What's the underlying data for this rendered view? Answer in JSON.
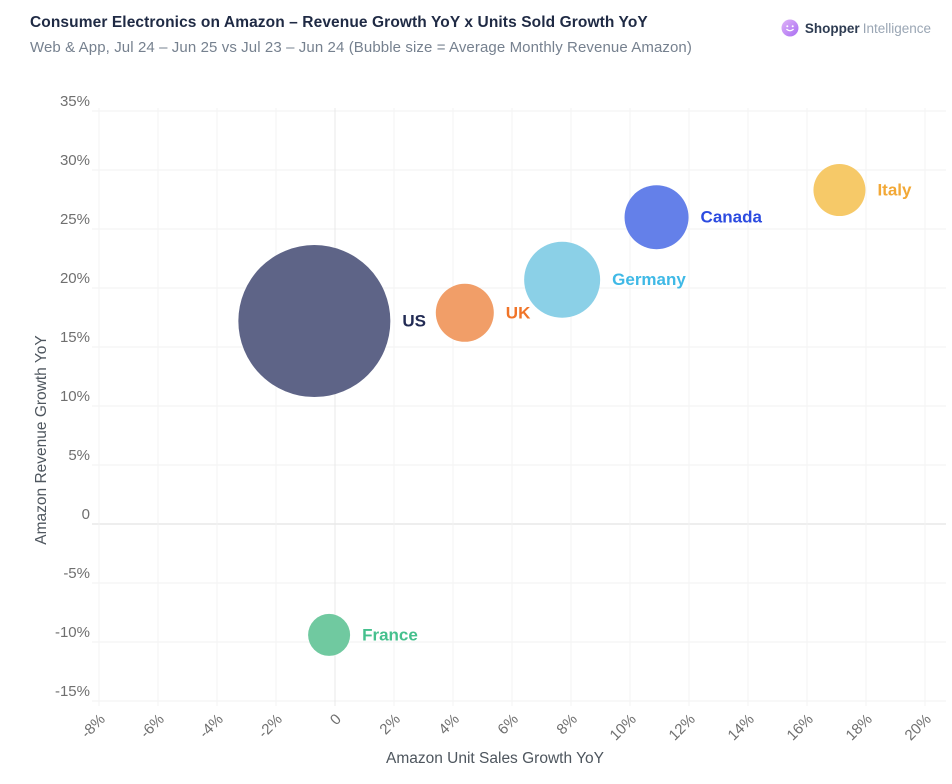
{
  "brand": {
    "primary": "Shopper",
    "secondary": "Intelligence",
    "logo_gradient_from": "#e0b3f8",
    "logo_gradient_to": "#a86ef2"
  },
  "chart_data": {
    "type": "scatter",
    "variant": "bubble",
    "title": "Consumer Electronics on Amazon – Revenue Growth YoY x Units Sold Growth YoY",
    "subtitle": "Web & App, Jul 24 – Jun 25 vs Jul 23 – Jun 24 (Bubble size = Average Monthly Revenue Amazon)",
    "xlabel": "Amazon Unit Sales Growth YoY",
    "ylabel": "Amazon Revenue Growth YoY",
    "xlim": [
      -9,
      21
    ],
    "ylim": [
      -17,
      36.5
    ],
    "grid": "on",
    "legend": "none",
    "size_encoding": "Bubble size = Average Monthly Revenue Amazon",
    "x_ticks": [
      {
        "value": -8,
        "label": "-8%"
      },
      {
        "value": -6,
        "label": "-6%"
      },
      {
        "value": -4,
        "label": "-4%"
      },
      {
        "value": -2,
        "label": "-2%"
      },
      {
        "value": 0,
        "label": "0"
      },
      {
        "value": 2,
        "label": "2%"
      },
      {
        "value": 4,
        "label": "4%"
      },
      {
        "value": 6,
        "label": "6%"
      },
      {
        "value": 8,
        "label": "8%"
      },
      {
        "value": 10,
        "label": "10%"
      },
      {
        "value": 12,
        "label": "12%"
      },
      {
        "value": 14,
        "label": "14%"
      },
      {
        "value": 16,
        "label": "16%"
      },
      {
        "value": 18,
        "label": "18%"
      },
      {
        "value": 20,
        "label": "20%"
      }
    ],
    "y_ticks": [
      {
        "value": 35,
        "label": "35%"
      },
      {
        "value": 30,
        "label": "30%"
      },
      {
        "value": 25,
        "label": "25%"
      },
      {
        "value": 20,
        "label": "20%"
      },
      {
        "value": 15,
        "label": "15%"
      },
      {
        "value": 10,
        "label": "10%"
      },
      {
        "value": 5,
        "label": "5%"
      },
      {
        "value": 0,
        "label": "0"
      },
      {
        "value": -5,
        "label": "-5%"
      },
      {
        "value": -10,
        "label": "-10%"
      },
      {
        "value": -15,
        "label": "-15%"
      }
    ],
    "series": [
      {
        "name": "US",
        "x": -0.7,
        "y": 17.2,
        "radius_px": 76,
        "bubble_color": "#5e6487",
        "label_color": "#222b54"
      },
      {
        "name": "UK",
        "x": 4.4,
        "y": 17.9,
        "radius_px": 29,
        "bubble_color": "#f19e68",
        "label_color": "#f07428"
      },
      {
        "name": "Germany",
        "x": 7.7,
        "y": 20.7,
        "radius_px": 38,
        "bubble_color": "#8bd0e7",
        "label_color": "#3fb9e6"
      },
      {
        "name": "Canada",
        "x": 10.9,
        "y": 26.0,
        "radius_px": 32,
        "bubble_color": "#6480e9",
        "label_color": "#2c4be0"
      },
      {
        "name": "Italy",
        "x": 17.1,
        "y": 28.3,
        "radius_px": 26,
        "bubble_color": "#f6c968",
        "label_color": "#f2a836"
      },
      {
        "name": "France",
        "x": -0.2,
        "y": -9.4,
        "radius_px": 21,
        "bubble_color": "#70c9a0",
        "label_color": "#45c08d"
      }
    ]
  }
}
